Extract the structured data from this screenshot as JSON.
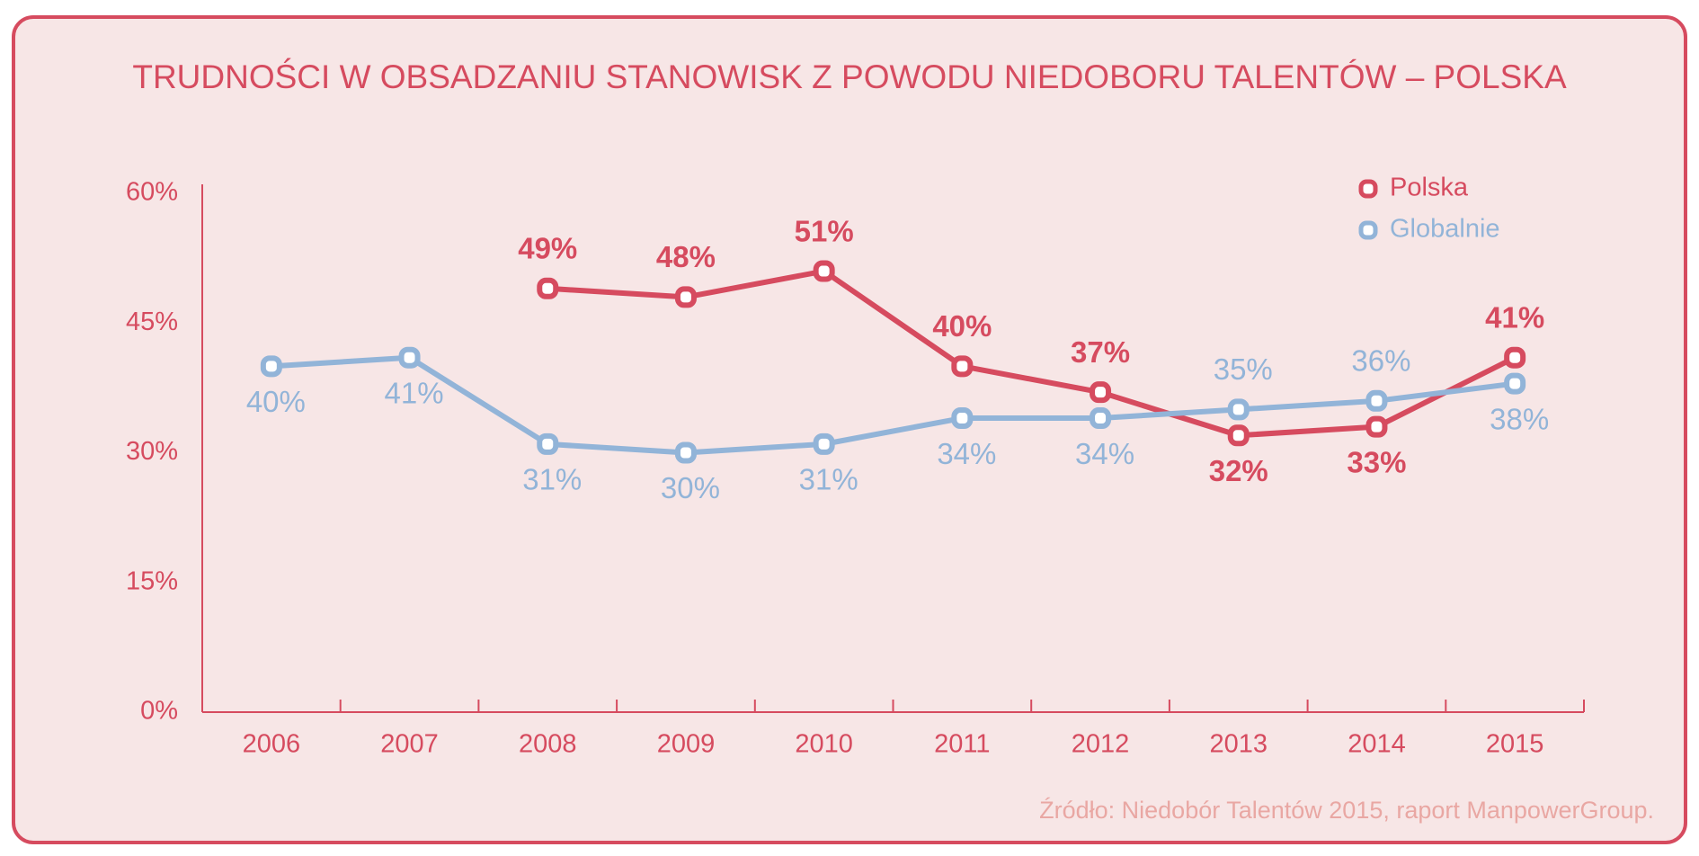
{
  "chart_data": {
    "type": "line",
    "title": "TRUDNOŚCI W OBSADZANIU STANOWISK Z POWODU NIEDOBORU TALENTÓW – POLSKA",
    "categories": [
      "2006",
      "2007",
      "2008",
      "2009",
      "2010",
      "2011",
      "2012",
      "2013",
      "2014",
      "2015"
    ],
    "series": [
      {
        "name": "Polska",
        "color": "#d64b5f",
        "values": [
          null,
          null,
          49,
          48,
          51,
          40,
          37,
          32,
          33,
          41
        ],
        "value_labels": [
          null,
          null,
          "49%",
          "48%",
          "51%",
          "40%",
          "37%",
          "32%",
          "33%",
          "41%"
        ]
      },
      {
        "name": "Globalnie",
        "color": "#92b4d8",
        "values": [
          40,
          41,
          31,
          30,
          31,
          34,
          34,
          35,
          36,
          38
        ],
        "value_labels": [
          "40%",
          "41%",
          "31%",
          "30%",
          "31%",
          "34%",
          "34%",
          "35%",
          "36%",
          "38%"
        ]
      }
    ],
    "ylim": [
      0,
      60
    ],
    "yticks": [
      {
        "value": 0,
        "label": "0%"
      },
      {
        "value": 15,
        "label": "15%"
      },
      {
        "value": 30,
        "label": "30%"
      },
      {
        "value": 45,
        "label": "45%"
      },
      {
        "value": 60,
        "label": "60%"
      }
    ],
    "legend": "top-right",
    "source": "Źródło: Niedobór Talentów 2015, raport ManpowerGroup."
  }
}
